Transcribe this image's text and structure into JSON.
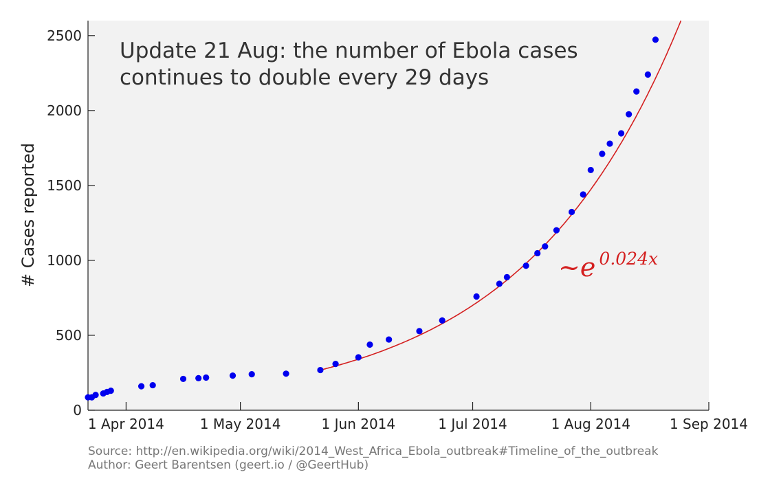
{
  "chart_data": {
    "type": "scatter",
    "ylabel": "# Cases reported",
    "xlabel": "",
    "title": "",
    "ylim": [
      0,
      2600
    ],
    "yticks": [
      0,
      500,
      1000,
      1500,
      2000,
      2500
    ],
    "xlim": [
      "2014-03-22",
      "2014-09-01"
    ],
    "xticks": [
      {
        "date": "2014-04-01",
        "label": "1 Apr 2014"
      },
      {
        "date": "2014-05-01",
        "label": "1 May 2014"
      },
      {
        "date": "2014-06-01",
        "label": "1 Jun 2014"
      },
      {
        "date": "2014-07-01",
        "label": "1 Jul 2014"
      },
      {
        "date": "2014-08-01",
        "label": "1 Aug 2014"
      },
      {
        "date": "2014-09-01",
        "label": "1 Sep 2014"
      }
    ],
    "annotation_lines": [
      "Update 21 Aug: the number of Ebola cases",
      "continues to double every 29 days"
    ],
    "formula": {
      "base": "~e",
      "exponent": "0.024x"
    },
    "grid": false,
    "background_color": "#f2f2f2",
    "point_color": "#0000ee",
    "fit_color": "#d42020",
    "series": [
      {
        "values": [
          {
            "x": "2014-03-22",
            "y": 86
          },
          {
            "x": "2014-03-23",
            "y": 86
          },
          {
            "x": "2014-03-24",
            "y": 102
          },
          {
            "x": "2014-03-26",
            "y": 112
          },
          {
            "x": "2014-03-27",
            "y": 122
          },
          {
            "x": "2014-03-28",
            "y": 130
          },
          {
            "x": "2014-04-05",
            "y": 160
          },
          {
            "x": "2014-04-08",
            "y": 167
          },
          {
            "x": "2014-04-16",
            "y": 209
          },
          {
            "x": "2014-04-20",
            "y": 214
          },
          {
            "x": "2014-04-22",
            "y": 218
          },
          {
            "x": "2014-04-29",
            "y": 231
          },
          {
            "x": "2014-05-04",
            "y": 240
          },
          {
            "x": "2014-05-13",
            "y": 244
          },
          {
            "x": "2014-05-22",
            "y": 268
          },
          {
            "x": "2014-05-26",
            "y": 309
          },
          {
            "x": "2014-06-01",
            "y": 353
          },
          {
            "x": "2014-06-04",
            "y": 438
          },
          {
            "x": "2014-06-09",
            "y": 472
          },
          {
            "x": "2014-06-17",
            "y": 528
          },
          {
            "x": "2014-06-23",
            "y": 599
          },
          {
            "x": "2014-07-02",
            "y": 759
          },
          {
            "x": "2014-07-08",
            "y": 844
          },
          {
            "x": "2014-07-10",
            "y": 888
          },
          {
            "x": "2014-07-15",
            "y": 964
          },
          {
            "x": "2014-07-18",
            "y": 1048
          },
          {
            "x": "2014-07-20",
            "y": 1093
          },
          {
            "x": "2014-07-23",
            "y": 1201
          },
          {
            "x": "2014-07-27",
            "y": 1323
          },
          {
            "x": "2014-07-30",
            "y": 1440
          },
          {
            "x": "2014-08-01",
            "y": 1603
          },
          {
            "x": "2014-08-04",
            "y": 1711
          },
          {
            "x": "2014-08-06",
            "y": 1779
          },
          {
            "x": "2014-08-09",
            "y": 1848
          },
          {
            "x": "2014-08-11",
            "y": 1975
          },
          {
            "x": "2014-08-13",
            "y": 2127
          },
          {
            "x": "2014-08-16",
            "y": 2240
          },
          {
            "x": "2014-08-18",
            "y": 2473
          }
        ]
      }
    ],
    "fit": {
      "type": "exponential",
      "rate_per_day": 0.024,
      "anchor": {
        "x": "2014-05-22",
        "y": 268
      },
      "x_start": "2014-05-22",
      "x_end": "2014-09-01"
    }
  },
  "credits": [
    "Source: http://en.wikipedia.org/wiki/2014_West_Africa_Ebola_outbreak#Timeline_of_the_outbreak",
    "Author: Geert Barentsen (geert.io / @GeertHub)"
  ]
}
